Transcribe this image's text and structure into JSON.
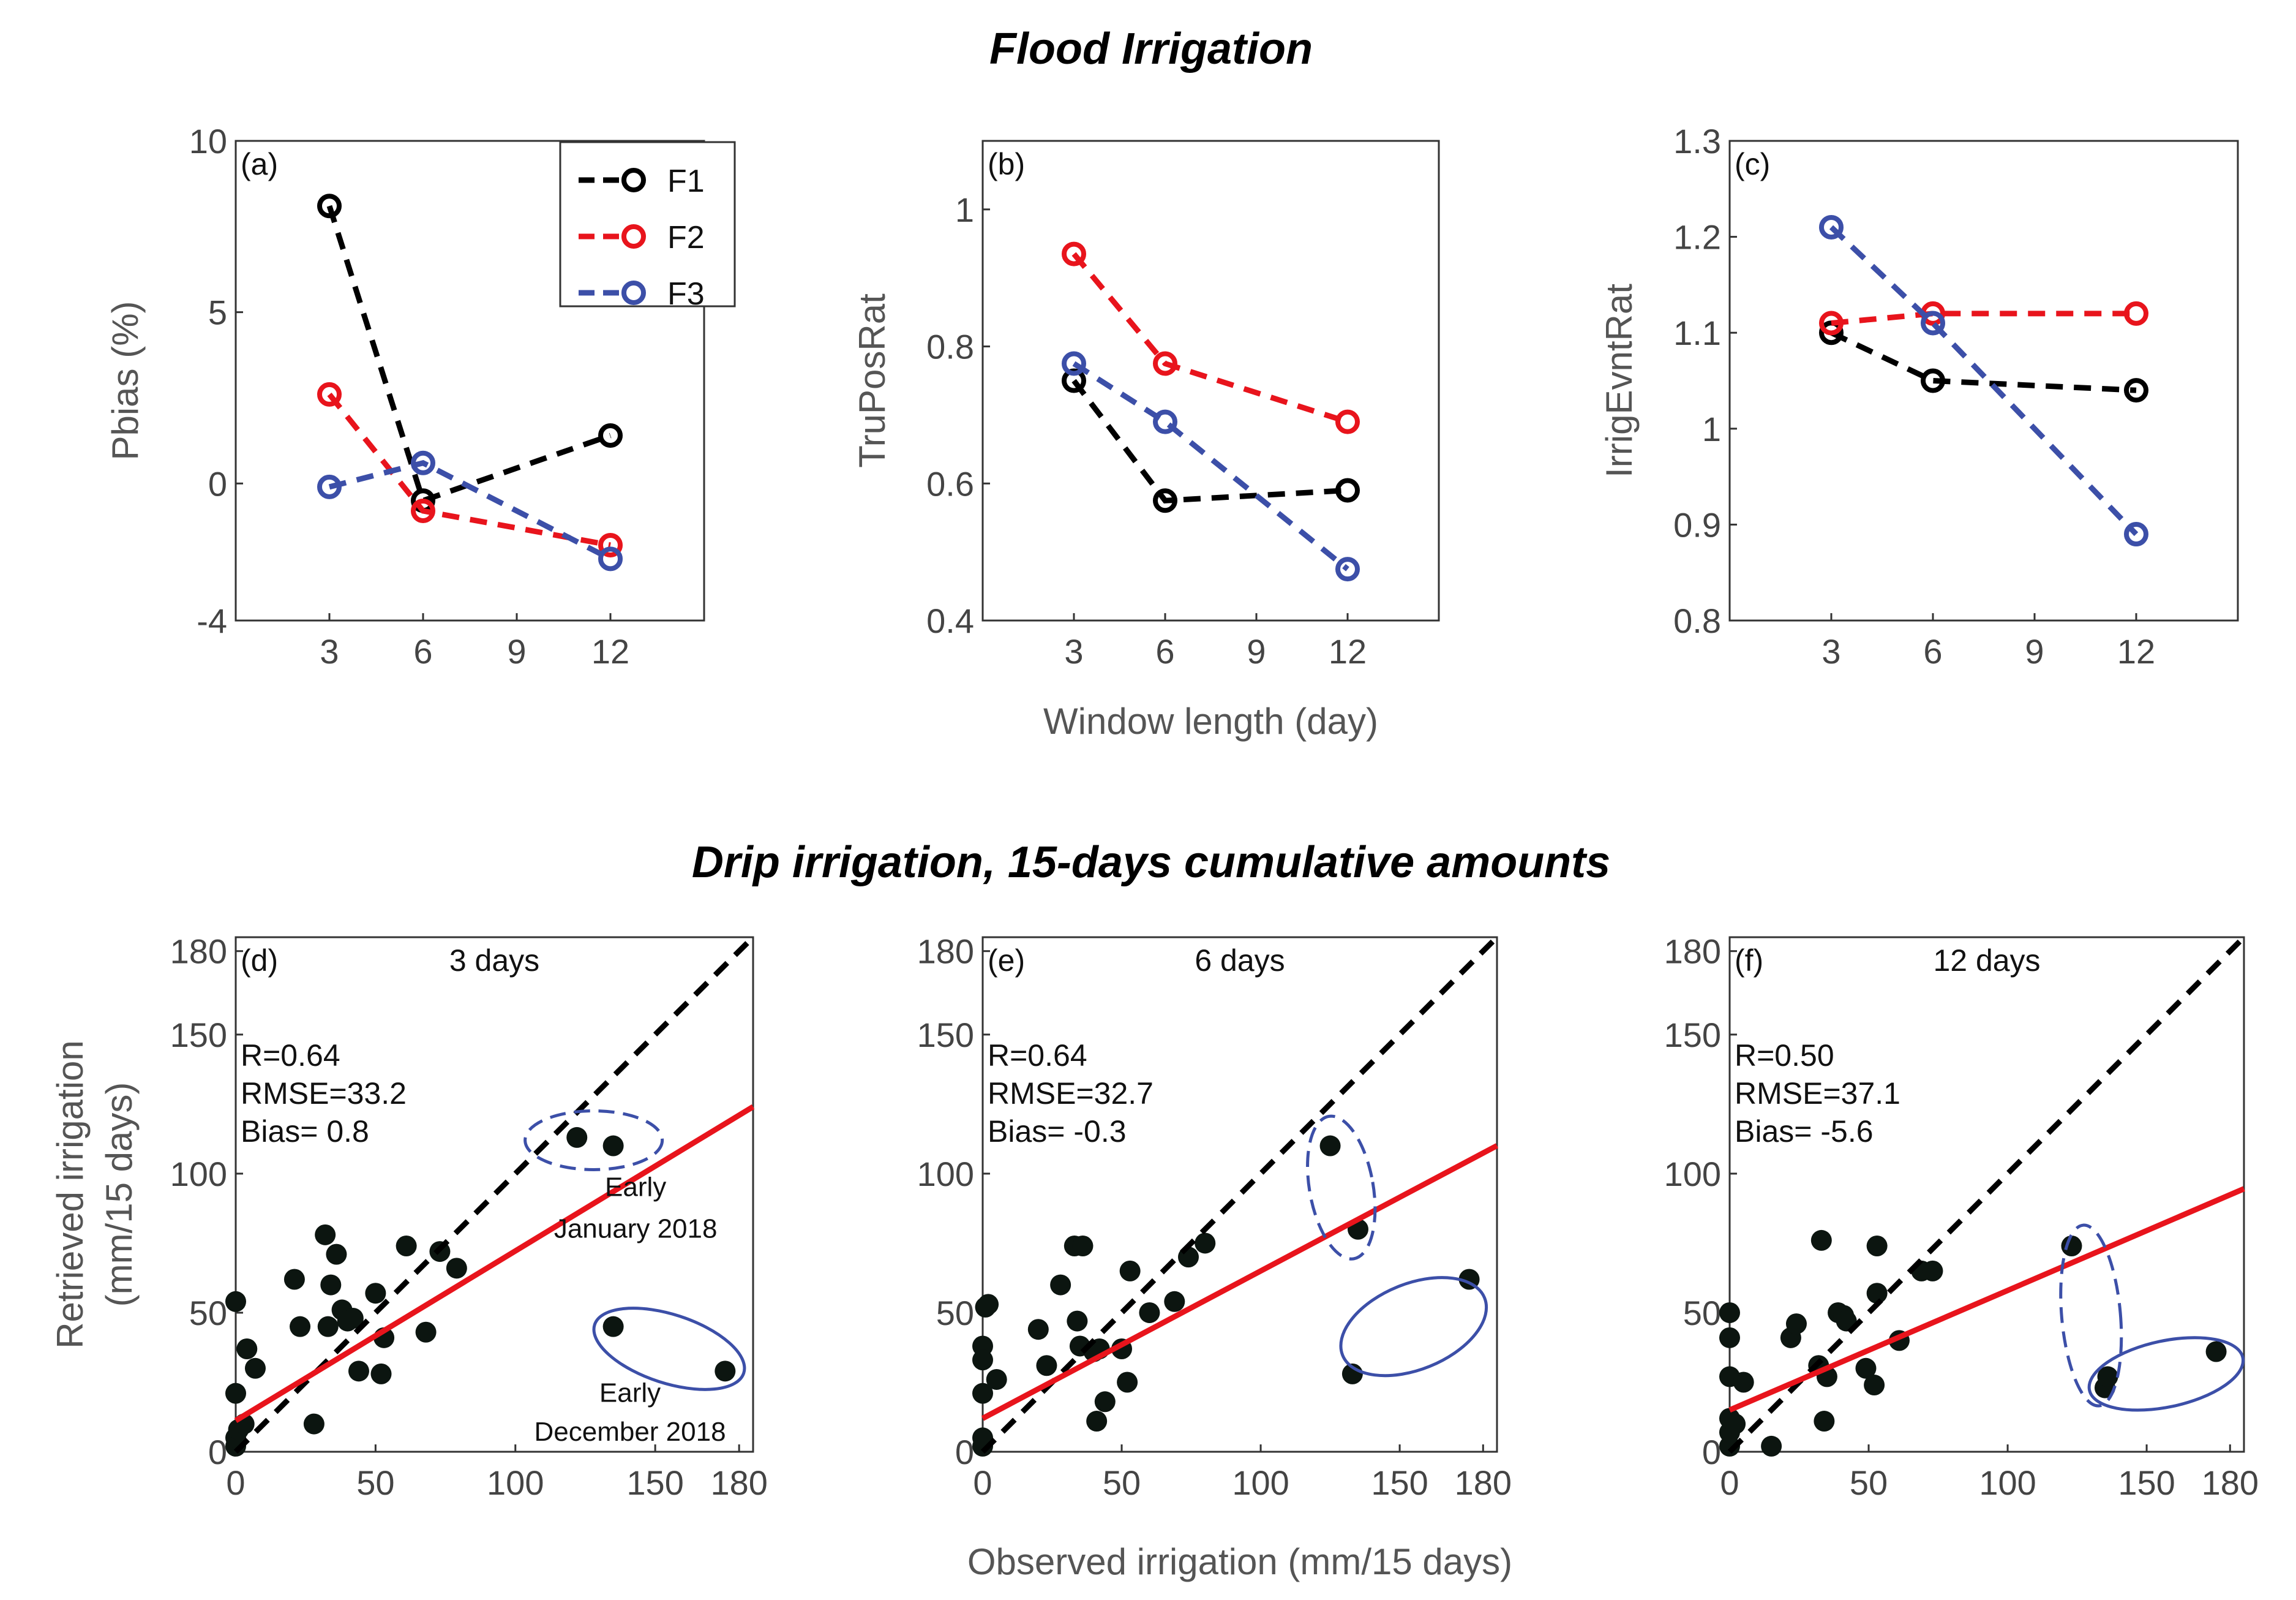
{
  "titles": {
    "top": "Flood Irrigation",
    "bottom": "Drip irrigation, 15-days cumulative amounts"
  },
  "colors": {
    "F1": "#000000",
    "F2": "#e8141c",
    "F3": "#3c4fa8",
    "fit_line": "#e8141c",
    "one_to_one": "#000000",
    "ellipse": "#3c4fa8",
    "point": "#0c1510"
  },
  "chart_data": [
    {
      "type": "line",
      "panel": "(a)",
      "ylabel": "Pbias (%)",
      "xlabel": "",
      "xlim": [
        0,
        15
      ],
      "ylim": [
        -4,
        10
      ],
      "x": [
        3,
        6,
        12
      ],
      "xticks": [
        3,
        6,
        9,
        12
      ],
      "yticks": [
        10,
        5,
        0,
        -4
      ],
      "series": [
        {
          "name": "F1",
          "values": [
            8.1,
            -0.5,
            1.4
          ]
        },
        {
          "name": "F2",
          "values": [
            2.6,
            -0.8,
            -1.8
          ]
        },
        {
          "name": "F3",
          "values": [
            -0.1,
            0.6,
            -2.2
          ]
        }
      ],
      "legend": [
        "F1",
        "F2",
        "F3"
      ]
    },
    {
      "type": "line",
      "panel": "(b)",
      "ylabel": "TruPosRat",
      "xlabel": "Window length (day)",
      "xlim": [
        0,
        15
      ],
      "ylim": [
        0.4,
        1.1
      ],
      "x": [
        3,
        6,
        12
      ],
      "xticks": [
        3,
        6,
        9,
        12
      ],
      "yticks": [
        1,
        0.8,
        0.6,
        0.4
      ],
      "series": [
        {
          "name": "F1",
          "values": [
            0.75,
            0.575,
            0.59
          ]
        },
        {
          "name": "F2",
          "values": [
            0.935,
            0.775,
            0.69
          ]
        },
        {
          "name": "F3",
          "values": [
            0.775,
            0.69,
            0.475
          ]
        }
      ]
    },
    {
      "type": "line",
      "panel": "(c)",
      "ylabel": "IrrigEvntRat",
      "xlabel": "",
      "xlim": [
        0,
        15
      ],
      "ylim": [
        0.8,
        1.3
      ],
      "x": [
        3,
        6,
        12
      ],
      "xticks": [
        3,
        6,
        9,
        12
      ],
      "yticks": [
        1.3,
        1.2,
        1.1,
        1,
        0.9,
        0.8
      ],
      "series": [
        {
          "name": "F1",
          "values": [
            1.1,
            1.05,
            1.04
          ]
        },
        {
          "name": "F2",
          "values": [
            1.11,
            1.12,
            1.12
          ]
        },
        {
          "name": "F3",
          "values": [
            1.21,
            1.11,
            0.89
          ]
        }
      ]
    },
    {
      "type": "scatter",
      "panel": "(d)",
      "subtitle": "3 days",
      "ylabel": "Retrieved irrigation",
      "ylabel2": "(mm/15 days)",
      "xlabel": "",
      "xlim": [
        0,
        185
      ],
      "ylim": [
        0,
        185
      ],
      "xticks": [
        0,
        50,
        100,
        150,
        180
      ],
      "yticks": [
        0,
        50,
        100,
        150,
        180
      ],
      "stats": {
        "r": "R=0.64",
        "rmse": "RMSE=33.2",
        "bias": "Bias= 0.8"
      },
      "fit": {
        "slope": 0.61,
        "intercept": 11.2
      },
      "points": [
        [
          0,
          2
        ],
        [
          0,
          5
        ],
        [
          1,
          8
        ],
        [
          0,
          21
        ],
        [
          0,
          54
        ],
        [
          3,
          10
        ],
        [
          4,
          37
        ],
        [
          7,
          30
        ],
        [
          21,
          62
        ],
        [
          23,
          45
        ],
        [
          28,
          10
        ],
        [
          32,
          78
        ],
        [
          33,
          45
        ],
        [
          34,
          60
        ],
        [
          36,
          71
        ],
        [
          38,
          51
        ],
        [
          40,
          47
        ],
        [
          42,
          48
        ],
        [
          44,
          29
        ],
        [
          50,
          57
        ],
        [
          52,
          28
        ],
        [
          53,
          41
        ],
        [
          61,
          74
        ],
        [
          68,
          43
        ],
        [
          73,
          72
        ],
        [
          79,
          66
        ],
        [
          122,
          113
        ],
        [
          135,
          110
        ],
        [
          135,
          45
        ],
        [
          175,
          29
        ]
      ],
      "annotations": {
        "upper": "Early",
        "upper2": "January 2018",
        "lower": "Early",
        "lower2": "December 2018"
      }
    },
    {
      "type": "scatter",
      "panel": "(e)",
      "subtitle": "6 days",
      "xlabel": "Observed irrigation (mm/15 days)",
      "xlim": [
        0,
        185
      ],
      "ylim": [
        0,
        185
      ],
      "xticks": [
        0,
        50,
        100,
        150,
        180
      ],
      "yticks": [
        0,
        50,
        100,
        150,
        180
      ],
      "stats": {
        "r": "R=0.64",
        "rmse": "RMSE=32.7",
        "bias": "Bias= -0.3"
      },
      "fit": {
        "slope": 0.53,
        "intercept": 12
      },
      "points": [
        [
          0,
          2
        ],
        [
          0,
          5
        ],
        [
          1,
          52
        ],
        [
          0,
          38
        ],
        [
          0,
          33
        ],
        [
          0,
          21
        ],
        [
          2,
          53
        ],
        [
          5,
          26
        ],
        [
          20,
          44
        ],
        [
          23,
          31
        ],
        [
          28,
          60
        ],
        [
          33,
          74
        ],
        [
          34,
          47
        ],
        [
          35,
          38
        ],
        [
          36,
          74
        ],
        [
          40,
          36
        ],
        [
          41,
          11
        ],
        [
          42,
          37
        ],
        [
          44,
          18
        ],
        [
          50,
          37
        ],
        [
          52,
          25
        ],
        [
          53,
          65
        ],
        [
          60,
          50
        ],
        [
          69,
          54
        ],
        [
          74,
          70
        ],
        [
          80,
          75
        ],
        [
          125,
          110
        ],
        [
          135,
          80
        ],
        [
          133,
          28
        ],
        [
          175,
          62
        ]
      ]
    },
    {
      "type": "scatter",
      "panel": "(f)",
      "subtitle": "12 days",
      "xlabel": "",
      "xlim": [
        0,
        185
      ],
      "ylim": [
        0,
        185
      ],
      "xticks": [
        0,
        50,
        100,
        150,
        180
      ],
      "yticks": [
        0,
        50,
        100,
        150,
        180
      ],
      "stats": {
        "r": "R=0.50",
        "rmse": "RMSE=37.1",
        "bias": "Bias= -5.6"
      },
      "fit": {
        "slope": 0.43,
        "intercept": 15
      },
      "points": [
        [
          0,
          2
        ],
        [
          0,
          7
        ],
        [
          0,
          12
        ],
        [
          0,
          27
        ],
        [
          0,
          41
        ],
        [
          0,
          50
        ],
        [
          2,
          10
        ],
        [
          5,
          25
        ],
        [
          15,
          2
        ],
        [
          22,
          41
        ],
        [
          24,
          46
        ],
        [
          32,
          31
        ],
        [
          33,
          76
        ],
        [
          34,
          11
        ],
        [
          35,
          27
        ],
        [
          39,
          50
        ],
        [
          41,
          49
        ],
        [
          42,
          47
        ],
        [
          49,
          30
        ],
        [
          52,
          24
        ],
        [
          53,
          57
        ],
        [
          53,
          74
        ],
        [
          61,
          40
        ],
        [
          69,
          65
        ],
        [
          73,
          65
        ],
        [
          123,
          74
        ],
        [
          135,
          23
        ],
        [
          136,
          27
        ],
        [
          175,
          36
        ]
      ]
    }
  ]
}
